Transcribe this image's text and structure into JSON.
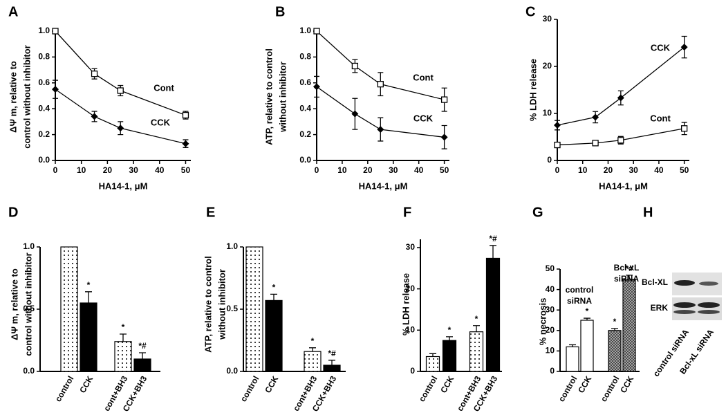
{
  "chart_data": [
    {
      "type": "line",
      "panel_label": "A",
      "ylabel": [
        "ΔΨ m, relative to",
        "control without inhibitor"
      ],
      "xlabel": "HA14-1, μM",
      "x": [
        0,
        15,
        25,
        50
      ],
      "xlim": [
        0,
        52
      ],
      "xticks": [
        0,
        10,
        20,
        30,
        40,
        50
      ],
      "ylim": [
        0,
        1
      ],
      "yticks": [
        {
          "value": 0,
          "label": "0.0"
        },
        0.2,
        0.4,
        0.6,
        0.8,
        {
          "value": 1,
          "label": "1.0"
        }
      ],
      "series": [
        {
          "name": "Cont",
          "color": "#000000",
          "marker": "open-square",
          "values": [
            1.0,
            0.67,
            0.54,
            0.35
          ],
          "errors": [
            0.01,
            0.04,
            0.04,
            0.03
          ]
        },
        {
          "name": "CCK",
          "color": "#000000",
          "marker": "diamond",
          "values": [
            0.55,
            0.34,
            0.25,
            0.13
          ],
          "errors": [
            0.07,
            0.04,
            0.05,
            0.03
          ]
        }
      ]
    },
    {
      "type": "line",
      "panel_label": "B",
      "ylabel": [
        "ATP, relative to control",
        "without inhibitor"
      ],
      "xlabel": "HA14-1, μM",
      "x": [
        0,
        15,
        25,
        50
      ],
      "xlim": [
        0,
        52
      ],
      "xticks": [
        0,
        10,
        20,
        30,
        40,
        50
      ],
      "ylim": [
        0,
        1
      ],
      "yticks": [
        {
          "value": 0,
          "label": "0.0"
        },
        0.2,
        0.4,
        0.6,
        0.8,
        {
          "value": 1,
          "label": "1.0"
        }
      ],
      "series": [
        {
          "name": "Cont",
          "color": "#000000",
          "marker": "open-square",
          "values": [
            1.0,
            0.73,
            0.59,
            0.47
          ],
          "errors": [
            0.01,
            0.05,
            0.09,
            0.09
          ]
        },
        {
          "name": "CCK",
          "color": "#000000",
          "marker": "diamond",
          "values": [
            0.57,
            0.36,
            0.24,
            0.18
          ],
          "errors": [
            0.08,
            0.12,
            0.09,
            0.09
          ]
        }
      ]
    },
    {
      "type": "line",
      "panel_label": "C",
      "ylabel": [
        "% LDH release"
      ],
      "xlabel": "HA14-1, μM",
      "x": [
        0,
        15,
        25,
        50
      ],
      "xlim": [
        0,
        52
      ],
      "xticks": [
        0,
        10,
        20,
        30,
        40,
        50
      ],
      "ylim": [
        0,
        30
      ],
      "yticks": [
        0,
        10,
        20,
        30
      ],
      "series": [
        {
          "name": "CCK",
          "color": "#000000",
          "marker": "diamond",
          "values": [
            7.5,
            9.2,
            13.3,
            24.1
          ],
          "errors": [
            1.0,
            1.2,
            1.5,
            2.3
          ]
        },
        {
          "name": "Cont",
          "color": "#000000",
          "marker": "open-square",
          "values": [
            3.3,
            3.7,
            4.3,
            6.8
          ],
          "errors": [
            0.5,
            0.4,
            0.8,
            1.3
          ]
        }
      ]
    },
    {
      "type": "bar",
      "panel_label": "D",
      "ylabel": [
        "ΔΨ m, relative to",
        "control without inhibitor"
      ],
      "categories": [
        "control",
        "CCK",
        "cont+BH3",
        "CCK+BH3"
      ],
      "values": [
        1.0,
        0.55,
        0.24,
        0.1
      ],
      "errors": [
        null,
        0.09,
        0.06,
        0.05
      ],
      "fills": [
        "dots",
        "solid",
        "dots",
        "solid"
      ],
      "annotations": [
        null,
        "*",
        "*",
        "*#"
      ],
      "ylim": [
        0,
        1
      ],
      "yticks": [
        {
          "value": 0,
          "label": "0.0"
        },
        0.5,
        {
          "value": 1,
          "label": "1.0"
        }
      ]
    },
    {
      "type": "bar",
      "panel_label": "E",
      "ylabel": [
        "ATP, relative to control",
        "without inhibitor"
      ],
      "categories": [
        "control",
        "CCK",
        "cont+BH3",
        "CCK+BH3"
      ],
      "values": [
        1.0,
        0.57,
        0.16,
        0.05
      ],
      "errors": [
        null,
        0.05,
        0.03,
        0.04
      ],
      "fills": [
        "dots",
        "solid",
        "dots",
        "solid"
      ],
      "annotations": [
        null,
        "*",
        "*",
        "*#"
      ],
      "ylim": [
        0,
        1
      ],
      "yticks": [
        {
          "value": 0,
          "label": "0.0"
        },
        0.5,
        {
          "value": 1,
          "label": "1.0"
        }
      ]
    },
    {
      "type": "bar",
      "panel_label": "F",
      "ylabel": [
        "% LDH release"
      ],
      "categories": [
        "control",
        "CCK",
        "cont+BH3",
        "CCK+BH3"
      ],
      "values": [
        3.6,
        7.5,
        9.6,
        27.4
      ],
      "errors": [
        0.7,
        0.9,
        1.5,
        3.1
      ],
      "fills": [
        "dots",
        "solid",
        "dots",
        "solid"
      ],
      "annotations": [
        null,
        "*",
        "*",
        "*#"
      ],
      "ylim": [
        0,
        32
      ],
      "yticks": [
        0,
        10,
        20,
        30
      ]
    },
    {
      "type": "bar",
      "panel_label": "G",
      "ylabel": [
        "% necrosis"
      ],
      "categories": [
        "control",
        "CCK",
        "control",
        "CCK"
      ],
      "values": [
        12,
        25,
        20,
        45
      ],
      "errors": [
        1,
        1,
        1,
        2
      ],
      "fills": [
        "open",
        "open",
        "hatch",
        "hatch"
      ],
      "annotations": [
        null,
        "*",
        "*",
        "*#"
      ],
      "groups": [
        [
          "control",
          "siRNA"
        ],
        [
          "Bcl-xL",
          "siRNA"
        ]
      ],
      "ylim": [
        0,
        50
      ],
      "yticks": [
        0,
        10,
        20,
        30,
        40,
        50
      ]
    }
  ],
  "blot": {
    "panel_label": "H",
    "rows": [
      "Bcl-XL",
      "ERK"
    ],
    "lanes": [
      "control siRNA",
      "Bcl-xL siRNA"
    ]
  }
}
